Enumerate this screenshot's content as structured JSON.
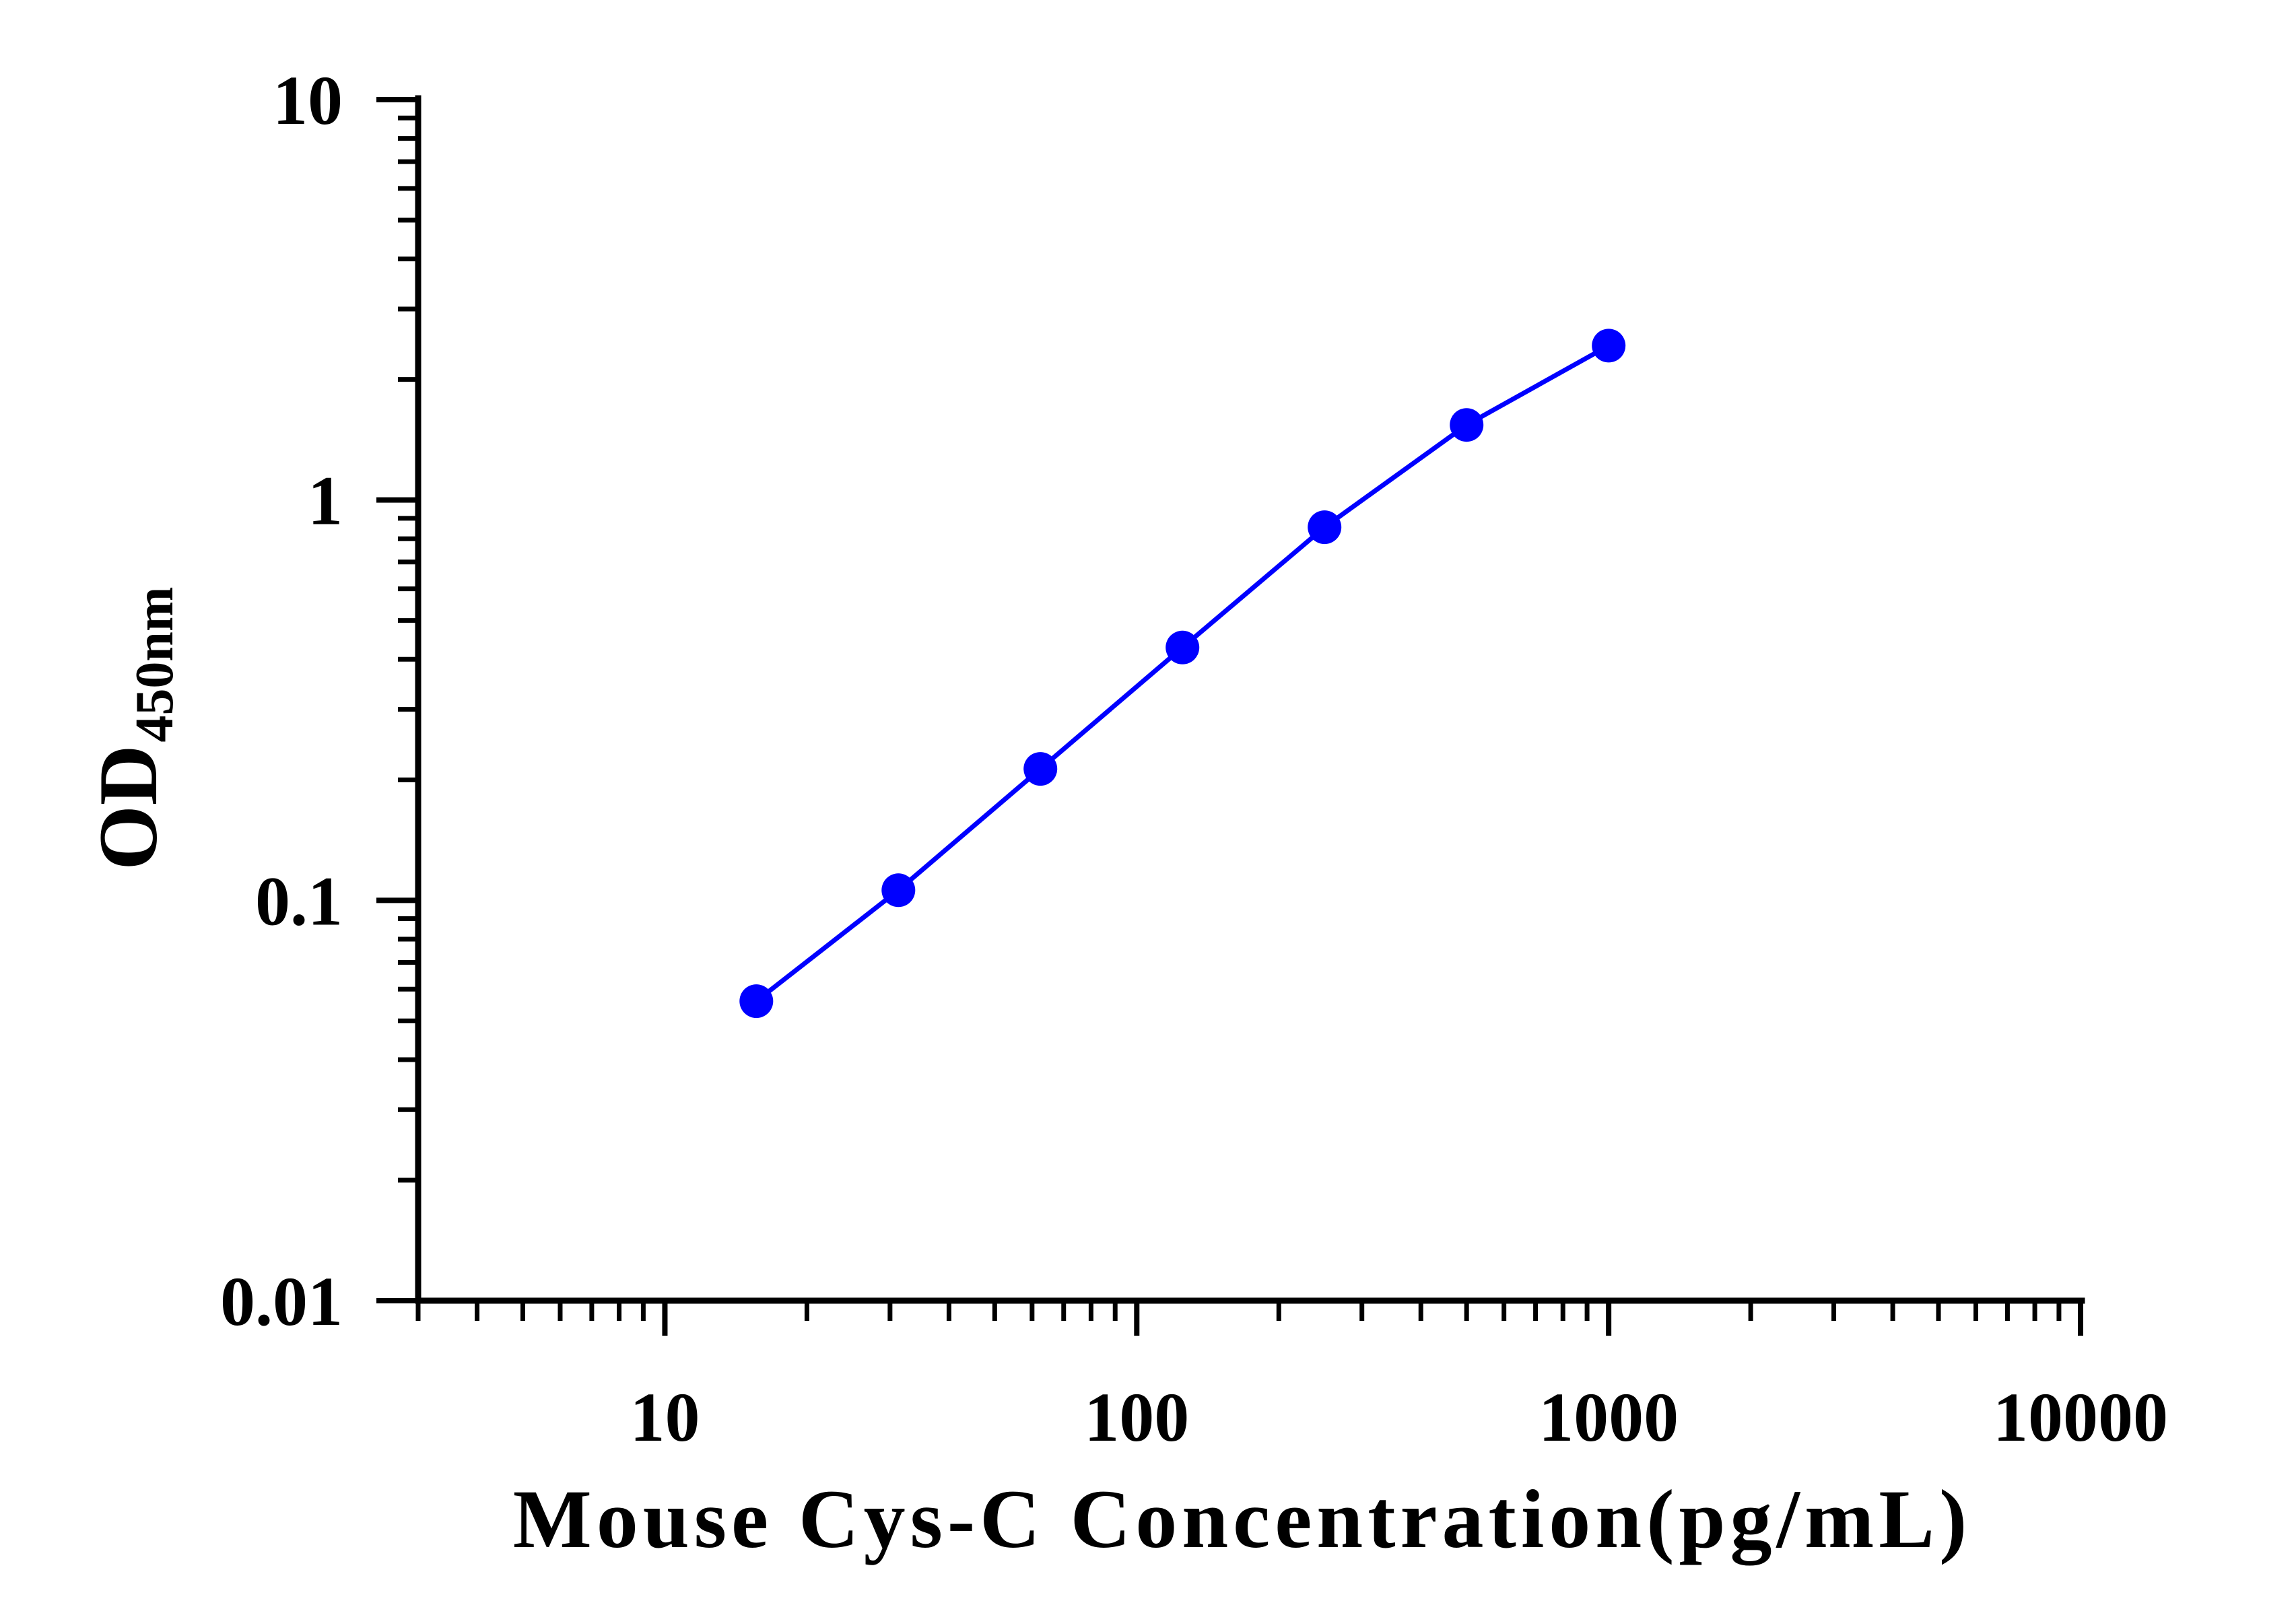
{
  "chart_data": {
    "type": "line",
    "title": "",
    "xlabel": "Mouse Cys-C Concentration(pg/mL)",
    "ylabel": {
      "main": "OD",
      "subscript": "450nm"
    },
    "x_scale": "log",
    "y_scale": "log",
    "xlim": [
      3,
      10000
    ],
    "ylim": [
      0.01,
      10
    ],
    "x_ticks": [
      {
        "value": 10,
        "label": "10"
      },
      {
        "value": 100,
        "label": "100"
      },
      {
        "value": 1000,
        "label": "1000"
      },
      {
        "value": 10000,
        "label": "10000"
      }
    ],
    "y_ticks": [
      {
        "value": 0.01,
        "label": "0.01"
      },
      {
        "value": 0.1,
        "label": "0.1"
      },
      {
        "value": 1,
        "label": "1"
      },
      {
        "value": 10,
        "label": "10"
      }
    ],
    "grid": false,
    "legend": "none",
    "series": [
      {
        "color": "#0000ff",
        "marker": "circle",
        "x": [
          15.625,
          31.25,
          62.5,
          125,
          250,
          500,
          1000
        ],
        "y": [
          0.056,
          0.106,
          0.213,
          0.428,
          0.855,
          1.54,
          2.43
        ]
      }
    ]
  },
  "colors": {
    "axis": "#000000",
    "series": "#0000ff",
    "background": "#ffffff"
  }
}
